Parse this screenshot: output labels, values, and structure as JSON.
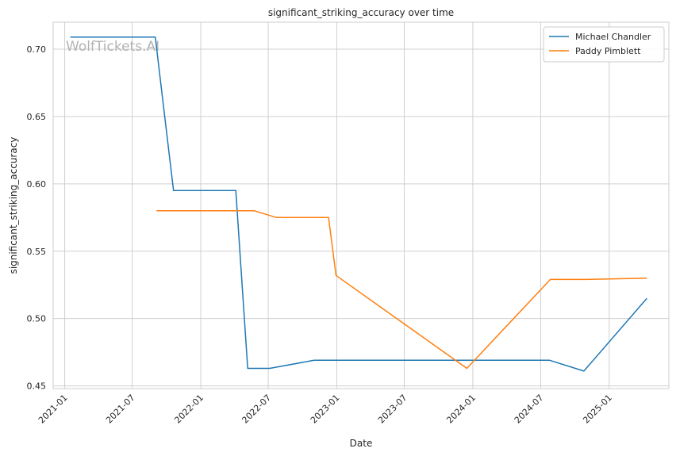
{
  "watermark": "WolfTickets.AI",
  "chart_data": {
    "type": "line",
    "title": "significant_striking_accuracy over time",
    "xlabel": "Date",
    "ylabel": "significant_striking_accuracy",
    "x_ticks": [
      "2021-01",
      "2021-07",
      "2022-01",
      "2022-07",
      "2023-01",
      "2023-07",
      "2024-01",
      "2024-07",
      "2025-01"
    ],
    "y_ticks": [
      "0.45",
      "0.50",
      "0.55",
      "0.60",
      "0.65",
      "0.70"
    ],
    "xlim": [
      "2020-12-01",
      "2025-06-10"
    ],
    "ylim": [
      0.448,
      0.72
    ],
    "grid": true,
    "legend_position": "top-right",
    "series": [
      {
        "name": "Michael Chandler",
        "color": "#1f77b4",
        "points": [
          [
            "2021-01-16",
            0.709
          ],
          [
            "2021-09-01",
            0.709
          ],
          [
            "2021-10-20",
            0.595
          ],
          [
            "2022-04-05",
            0.595
          ],
          [
            "2022-05-07",
            0.463
          ],
          [
            "2022-07-05",
            0.463
          ],
          [
            "2022-11-01",
            0.469
          ],
          [
            "2024-07-25",
            0.469
          ],
          [
            "2024-10-25",
            0.461
          ],
          [
            "2025-04-12",
            0.515
          ]
        ]
      },
      {
        "name": "Paddy Pimblett",
        "color": "#ff7f0e",
        "points": [
          [
            "2021-09-04",
            0.58
          ],
          [
            "2022-05-25",
            0.58
          ],
          [
            "2022-07-23",
            0.575
          ],
          [
            "2022-12-10",
            0.575
          ],
          [
            "2022-12-30",
            0.532
          ],
          [
            "2023-12-16",
            0.463
          ],
          [
            "2024-07-27",
            0.529
          ],
          [
            "2024-10-26",
            0.529
          ],
          [
            "2025-04-12",
            0.53
          ]
        ]
      }
    ]
  }
}
